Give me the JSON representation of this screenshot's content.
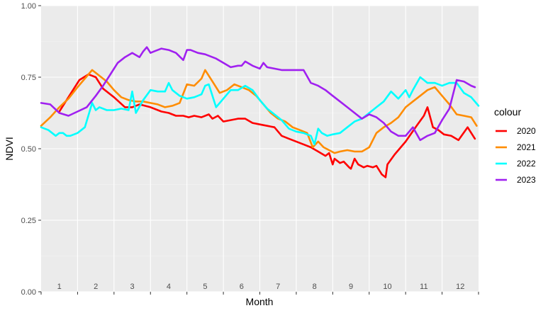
{
  "chart_data": {
    "type": "line",
    "xlabel": "Month",
    "ylabel": "NDVI",
    "xlim": [
      0.5,
      12.5
    ],
    "ylim": [
      0,
      1
    ],
    "y_ticks": [
      "0.00",
      "0.25",
      "0.50",
      "0.75",
      "1.00"
    ],
    "y_tick_values": [
      0,
      0.25,
      0.5,
      0.75,
      1
    ],
    "month_labels": [
      "1",
      "2",
      "3",
      "4",
      "5",
      "6",
      "7",
      "8",
      "9",
      "10",
      "11",
      "12"
    ],
    "grid": true,
    "legend": {
      "title": "colour",
      "position": "right"
    },
    "series": [
      {
        "name": "2020",
        "color": "#ff0000",
        "x": [
          1.0,
          1.3,
          1.55,
          1.8,
          2.0,
          2.2,
          2.5,
          2.8,
          3.0,
          3.2,
          3.5,
          3.8,
          4.0,
          4.2,
          4.4,
          4.55,
          4.7,
          4.9,
          5.1,
          5.2,
          5.35,
          5.5,
          5.7,
          5.9,
          6.1,
          6.3,
          6.5,
          6.7,
          6.9,
          7.1,
          7.3,
          7.5,
          7.7,
          7.9,
          8.1,
          8.3,
          8.4,
          8.5,
          8.55,
          8.7,
          8.8,
          8.95,
          9.0,
          9.1,
          9.2,
          9.35,
          9.45,
          9.6,
          9.7,
          9.85,
          9.95,
          10.0,
          10.2,
          10.5,
          10.8,
          11.0,
          11.1,
          11.25,
          11.4,
          11.55,
          11.75,
          11.95,
          12.2,
          12.4
        ],
        "y": [
          0.63,
          0.69,
          0.74,
          0.76,
          0.75,
          0.71,
          0.68,
          0.645,
          0.645,
          0.655,
          0.645,
          0.63,
          0.625,
          0.615,
          0.615,
          0.61,
          0.615,
          0.61,
          0.62,
          0.605,
          0.615,
          0.595,
          0.6,
          0.605,
          0.605,
          0.59,
          0.585,
          0.58,
          0.575,
          0.545,
          0.535,
          0.525,
          0.515,
          0.505,
          0.49,
          0.475,
          0.485,
          0.445,
          0.465,
          0.45,
          0.455,
          0.435,
          0.43,
          0.465,
          0.445,
          0.435,
          0.44,
          0.435,
          0.44,
          0.41,
          0.4,
          0.445,
          0.48,
          0.525,
          0.58,
          0.615,
          0.645,
          0.575,
          0.565,
          0.55,
          0.545,
          0.53,
          0.575,
          0.535
        ]
      },
      {
        "name": "2021",
        "color": "#ff8c00",
        "x": [
          0.5,
          0.75,
          1.0,
          1.25,
          1.5,
          1.7,
          1.9,
          2.1,
          2.3,
          2.5,
          2.7,
          2.9,
          3.1,
          3.3,
          3.5,
          3.7,
          3.9,
          4.1,
          4.3,
          4.5,
          4.7,
          4.9,
          5.0,
          5.2,
          5.4,
          5.6,
          5.8,
          6.0,
          6.2,
          6.4,
          6.6,
          6.8,
          7.0,
          7.2,
          7.4,
          7.6,
          7.8,
          7.95,
          8.1,
          8.25,
          8.4,
          8.55,
          8.7,
          8.9,
          9.1,
          9.3,
          9.5,
          9.7,
          9.9,
          10.1,
          10.3,
          10.5,
          10.7,
          10.9,
          11.1,
          11.3,
          11.5,
          11.7,
          11.9,
          12.1,
          12.3,
          12.45
        ],
        "y": [
          0.58,
          0.61,
          0.645,
          0.675,
          0.715,
          0.745,
          0.775,
          0.755,
          0.735,
          0.705,
          0.68,
          0.67,
          0.665,
          0.665,
          0.66,
          0.655,
          0.645,
          0.65,
          0.66,
          0.725,
          0.72,
          0.745,
          0.775,
          0.735,
          0.695,
          0.705,
          0.725,
          0.715,
          0.705,
          0.685,
          0.655,
          0.625,
          0.605,
          0.595,
          0.575,
          0.565,
          0.555,
          0.505,
          0.525,
          0.505,
          0.495,
          0.485,
          0.49,
          0.495,
          0.49,
          0.49,
          0.505,
          0.555,
          0.575,
          0.59,
          0.61,
          0.645,
          0.665,
          0.685,
          0.705,
          0.715,
          0.685,
          0.655,
          0.62,
          0.615,
          0.61,
          0.58
        ]
      },
      {
        "name": "2022",
        "color": "#00ffff",
        "x": [
          0.5,
          0.7,
          0.9,
          1.0,
          1.1,
          1.2,
          1.3,
          1.5,
          1.7,
          1.9,
          2.0,
          2.1,
          2.3,
          2.5,
          2.7,
          2.9,
          3.0,
          3.1,
          3.3,
          3.5,
          3.7,
          3.9,
          4.0,
          4.1,
          4.3,
          4.5,
          4.7,
          4.9,
          5.0,
          5.1,
          5.3,
          5.5,
          5.7,
          5.9,
          6.1,
          6.3,
          6.5,
          6.7,
          6.9,
          7.1,
          7.3,
          7.5,
          7.7,
          7.9,
          8.0,
          8.1,
          8.2,
          8.35,
          8.5,
          8.7,
          8.9,
          9.1,
          9.3,
          9.5,
          9.7,
          9.9,
          10.1,
          10.3,
          10.5,
          10.6,
          10.7,
          10.9,
          11.0,
          11.1,
          11.3,
          11.5,
          11.7,
          11.9,
          12.1,
          12.3,
          12.5
        ],
        "y": [
          0.575,
          0.565,
          0.545,
          0.555,
          0.555,
          0.545,
          0.545,
          0.555,
          0.575,
          0.66,
          0.635,
          0.645,
          0.635,
          0.635,
          0.64,
          0.635,
          0.7,
          0.625,
          0.67,
          0.705,
          0.7,
          0.7,
          0.73,
          0.705,
          0.685,
          0.675,
          0.68,
          0.69,
          0.72,
          0.725,
          0.645,
          0.675,
          0.705,
          0.705,
          0.72,
          0.705,
          0.67,
          0.64,
          0.62,
          0.6,
          0.57,
          0.56,
          0.555,
          0.545,
          0.515,
          0.57,
          0.555,
          0.545,
          0.55,
          0.555,
          0.575,
          0.595,
          0.605,
          0.625,
          0.645,
          0.665,
          0.7,
          0.675,
          0.705,
          0.68,
          0.705,
          0.75,
          0.74,
          0.73,
          0.73,
          0.72,
          0.73,
          0.73,
          0.695,
          0.68,
          0.65
        ]
      },
      {
        "name": "2023",
        "color": "#a020f0",
        "x": [
          0.5,
          0.75,
          1.0,
          1.25,
          1.5,
          1.75,
          2.0,
          2.2,
          2.4,
          2.6,
          2.8,
          3.0,
          3.2,
          3.3,
          3.4,
          3.5,
          3.6,
          3.8,
          4.0,
          4.2,
          4.4,
          4.5,
          4.6,
          4.8,
          5.0,
          5.1,
          5.3,
          5.5,
          5.7,
          5.9,
          6.0,
          6.1,
          6.3,
          6.5,
          6.6,
          6.7,
          6.9,
          7.1,
          7.3,
          7.5,
          7.7,
          7.9,
          8.1,
          8.3,
          8.5,
          8.7,
          8.9,
          9.1,
          9.3,
          9.5,
          9.7,
          9.9,
          10.1,
          10.3,
          10.5,
          10.7,
          10.9,
          11.1,
          11.3,
          11.5,
          11.7,
          11.9,
          12.1,
          12.3,
          12.4
        ],
        "y": [
          0.66,
          0.655,
          0.625,
          0.615,
          0.63,
          0.645,
          0.685,
          0.72,
          0.76,
          0.8,
          0.82,
          0.835,
          0.82,
          0.84,
          0.855,
          0.835,
          0.84,
          0.85,
          0.845,
          0.835,
          0.81,
          0.845,
          0.845,
          0.835,
          0.83,
          0.825,
          0.815,
          0.8,
          0.785,
          0.79,
          0.79,
          0.805,
          0.79,
          0.78,
          0.8,
          0.785,
          0.78,
          0.775,
          0.775,
          0.775,
          0.775,
          0.73,
          0.72,
          0.705,
          0.685,
          0.665,
          0.645,
          0.625,
          0.605,
          0.62,
          0.61,
          0.59,
          0.56,
          0.545,
          0.545,
          0.575,
          0.53,
          0.545,
          0.555,
          0.6,
          0.64,
          0.74,
          0.735,
          0.72,
          0.715
        ]
      }
    ]
  }
}
